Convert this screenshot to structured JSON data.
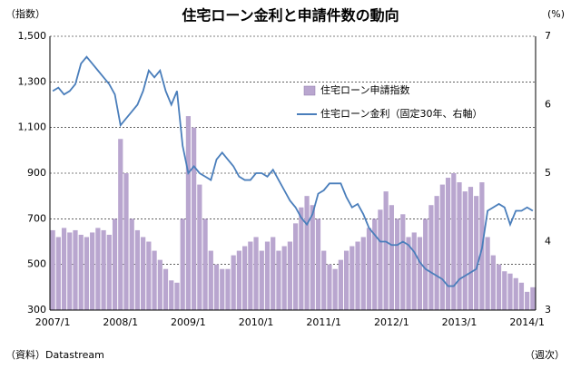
{
  "chart_data": {
    "type": "bar_line",
    "title": "住宅ローン金利と申請件数の動向",
    "y_label": "（指数）",
    "y2_label": "(%)",
    "source": "（資料）Datastream",
    "frequency": "（週次）",
    "categories": [
      "2007/1",
      null,
      null,
      null,
      null,
      null,
      null,
      null,
      null,
      null,
      null,
      null,
      "2008/1",
      null,
      null,
      null,
      null,
      null,
      null,
      null,
      null,
      null,
      null,
      null,
      "2009/1",
      null,
      null,
      null,
      null,
      null,
      null,
      null,
      null,
      null,
      null,
      null,
      "2010/1",
      null,
      null,
      null,
      null,
      null,
      null,
      null,
      null,
      null,
      null,
      null,
      "2011/1",
      null,
      null,
      null,
      null,
      null,
      null,
      null,
      null,
      null,
      null,
      null,
      "2012/1",
      null,
      null,
      null,
      null,
      null,
      null,
      null,
      null,
      null,
      null,
      null,
      "2013/1",
      null,
      null,
      null,
      null,
      null,
      null,
      null,
      null,
      null,
      null,
      null,
      "2014/1",
      null
    ],
    "series": [
      {
        "name": "住宅ローン申請指数",
        "color": "#b9a6cf",
        "values": [
          650,
          620,
          660,
          640,
          650,
          630,
          620,
          640,
          660,
          650,
          630,
          700,
          1050,
          900,
          700,
          650,
          620,
          600,
          560,
          520,
          480,
          430,
          420,
          700,
          1150,
          1100,
          850,
          700,
          560,
          500,
          480,
          480,
          540,
          560,
          580,
          600,
          620,
          560,
          600,
          620,
          560,
          580,
          600,
          680,
          750,
          800,
          760,
          700,
          560,
          500,
          480,
          520,
          560,
          580,
          600,
          620,
          660,
          700,
          740,
          820,
          760,
          700,
          720,
          620,
          640,
          620,
          700,
          760,
          800,
          850,
          880,
          900,
          860,
          820,
          840,
          800,
          860,
          620,
          540,
          500,
          470,
          460,
          440,
          420,
          380,
          400
        ]
      },
      {
        "name": "住宅ローン金利（固定30年、右軸）",
        "color": "#4a7ebb",
        "axis": "y2",
        "values": [
          6.2,
          6.25,
          6.15,
          6.2,
          6.3,
          6.6,
          6.7,
          6.6,
          6.5,
          6.4,
          6.3,
          6.15,
          5.7,
          5.8,
          5.9,
          6.0,
          6.2,
          6.5,
          6.4,
          6.5,
          6.2,
          6.0,
          6.2,
          5.4,
          5.0,
          5.1,
          5.0,
          4.95,
          4.9,
          5.2,
          5.3,
          5.2,
          5.1,
          4.95,
          4.9,
          4.9,
          5.0,
          5.0,
          4.95,
          5.05,
          4.9,
          4.75,
          4.6,
          4.5,
          4.35,
          4.25,
          4.4,
          4.7,
          4.75,
          4.85,
          4.85,
          4.85,
          4.65,
          4.5,
          4.55,
          4.4,
          4.2,
          4.1,
          4.0,
          4.0,
          3.95,
          3.95,
          4.0,
          3.95,
          3.85,
          3.7,
          3.6,
          3.55,
          3.5,
          3.45,
          3.35,
          3.35,
          3.45,
          3.5,
          3.55,
          3.6,
          3.9,
          4.45,
          4.5,
          4.55,
          4.5,
          4.25,
          4.45,
          4.45,
          4.5,
          4.45
        ]
      }
    ],
    "ylim": [
      300,
      1500
    ],
    "yticks": [
      300,
      500,
      700,
      900,
      {
        "value": 1100,
        "label": "1,100"
      },
      {
        "value": 1300,
        "label": "1,300"
      },
      {
        "value": 1500,
        "label": "1,500"
      }
    ],
    "y2lim": [
      3,
      7
    ],
    "y2ticks": [
      3,
      4,
      5,
      6,
      7
    ],
    "grid": true
  }
}
